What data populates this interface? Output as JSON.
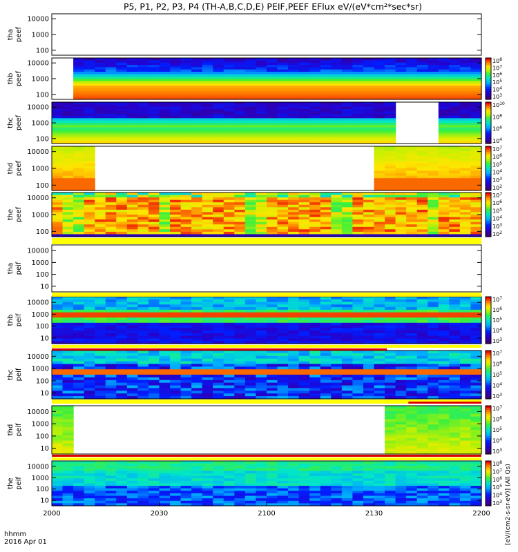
{
  "title": "P5, P1, P2, P3, P4 (TH-A,B,C,D,E) PEIF,PEEF EFlux eV/(eV*cm²*sec*sr)",
  "footer": {
    "line1": "hhmm",
    "line2": "2016 Apr 01"
  },
  "colorbar_label": "[eV/(cm2-s-sr-eV)] (All Qs)",
  "chart_data": {
    "type": "heatmap",
    "x_ticks": [
      "2000",
      "2030",
      "2100",
      "2130",
      "2200"
    ],
    "panels": [
      {
        "id": "tha_peef",
        "label": [
          "tha",
          "peef"
        ],
        "yticks": [
          "10000",
          "1000",
          "100"
        ],
        "colorbar": null,
        "coverage": [],
        "bg": "#ffffff"
      },
      {
        "id": "thb_peef",
        "label": [
          "thb",
          "peef"
        ],
        "yticks": [
          "10000",
          "1000",
          "100"
        ],
        "colorbar": {
          "exps": [
            "3",
            "4",
            "5",
            "6",
            "7",
            "8"
          ]
        },
        "coverage": [
          [
            0.04,
            1.0
          ]
        ],
        "scheme": "thb_e"
      },
      {
        "id": "thc_peef",
        "label": [
          "thc",
          "peef"
        ],
        "yticks": [
          "10000",
          "1000",
          "100"
        ],
        "colorbar": {
          "exps": [
            "4",
            "6",
            "8",
            "10"
          ]
        },
        "coverage": [
          [
            0.0,
            0.81
          ],
          [
            0.9,
            1.0
          ]
        ],
        "scheme": "thc_e"
      },
      {
        "id": "thd_peef",
        "label": [
          "thd",
          "peef"
        ],
        "yticks": [
          "10000",
          "1000",
          "100"
        ],
        "colorbar": {
          "exps": [
            "2",
            "3",
            "4",
            "5",
            "6",
            "7"
          ]
        },
        "coverage": [
          [
            0.0,
            0.105
          ],
          [
            0.76,
            1.0
          ]
        ],
        "scheme": "thd_e"
      },
      {
        "id": "the_peef",
        "label": [
          "the",
          "peef"
        ],
        "yticks": [
          "10000",
          "1000",
          "100"
        ],
        "colorbar": {
          "exps": [
            "2",
            "3",
            "4",
            "5",
            "6",
            "7"
          ]
        },
        "coverage": [
          [
            0.0,
            1.0
          ]
        ],
        "scheme": "the_e"
      },
      {
        "id": "tha_peif",
        "label": [
          "tha",
          "peif"
        ],
        "yticks": [
          "10000",
          "1000",
          "100",
          "10"
        ],
        "colorbar": null,
        "coverage": [],
        "bg": "#ffffff"
      },
      {
        "id": "thb_peif",
        "label": [
          "thb",
          "peif"
        ],
        "yticks": [
          "10000",
          "1000",
          "100",
          "10"
        ],
        "colorbar": {
          "exps": [
            "3",
            "4",
            "5",
            "6",
            "7"
          ]
        },
        "coverage": [
          [
            0.0,
            1.0
          ]
        ],
        "scheme": "thb_i"
      },
      {
        "id": "thc_peif",
        "label": [
          "thc",
          "peif"
        ],
        "yticks": [
          "10000",
          "1000",
          "100",
          "10"
        ],
        "colorbar": {
          "exps": [
            "3",
            "4",
            "5",
            "6",
            "7"
          ]
        },
        "coverage": [
          [
            0.0,
            1.0
          ]
        ],
        "scheme": "thc_i"
      },
      {
        "id": "thd_peif",
        "label": [
          "thd",
          "peif"
        ],
        "yticks": [
          "10000",
          "1000",
          "100",
          "10"
        ],
        "colorbar": {
          "exps": [
            "3",
            "4",
            "5",
            "6",
            "7"
          ]
        },
        "coverage": [
          [
            0.0,
            0.05
          ],
          [
            0.77,
            1.0
          ]
        ],
        "scheme": "thd_i"
      },
      {
        "id": "the_peif",
        "label": [
          "the",
          "peif"
        ],
        "yticks": [
          "10000",
          "1000",
          "100",
          "10"
        ],
        "colorbar": {
          "exps": [
            "3",
            "4",
            "5",
            "6",
            "7",
            "8"
          ]
        },
        "coverage": [
          [
            0.0,
            1.0
          ]
        ],
        "scheme": "the_i"
      }
    ]
  }
}
